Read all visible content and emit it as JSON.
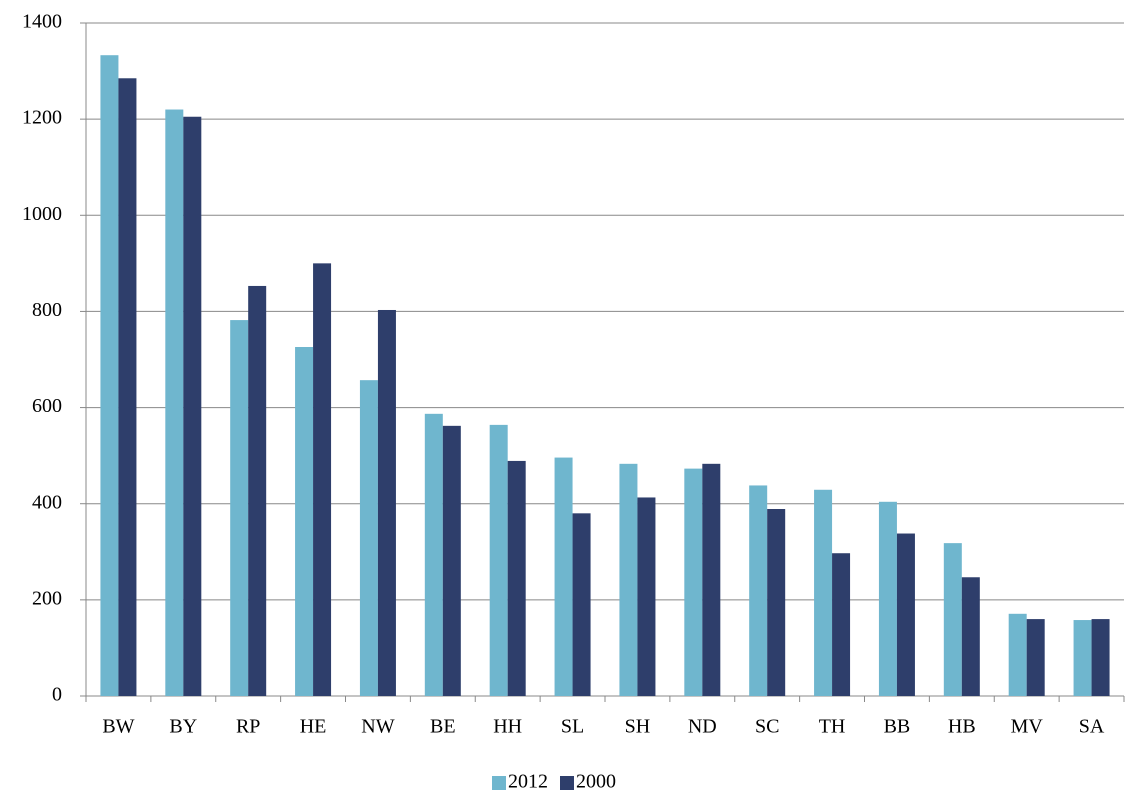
{
  "chart_data": {
    "type": "bar",
    "categories": [
      "BW",
      "BY",
      "RP",
      "HE",
      "NW",
      "BE",
      "HH",
      "SL",
      "SH",
      "ND",
      "SC",
      "TH",
      "BB",
      "HB",
      "MV",
      "SA"
    ],
    "series": [
      {
        "name": "2012",
        "color": "#6fb6ce",
        "values": [
          1333,
          1220,
          782,
          726,
          657,
          587,
          564,
          496,
          483,
          473,
          438,
          429,
          404,
          318,
          171,
          158
        ]
      },
      {
        "name": "2000",
        "color": "#2e3e6b",
        "values": [
          1285,
          1205,
          853,
          900,
          803,
          562,
          489,
          380,
          413,
          483,
          389,
          297,
          338,
          247,
          160,
          160
        ]
      }
    ],
    "ylim": [
      0,
      1400
    ],
    "yticks": [
      0,
      200,
      400,
      600,
      800,
      1000,
      1200,
      1400
    ],
    "grid": true,
    "legend": "bottom"
  }
}
